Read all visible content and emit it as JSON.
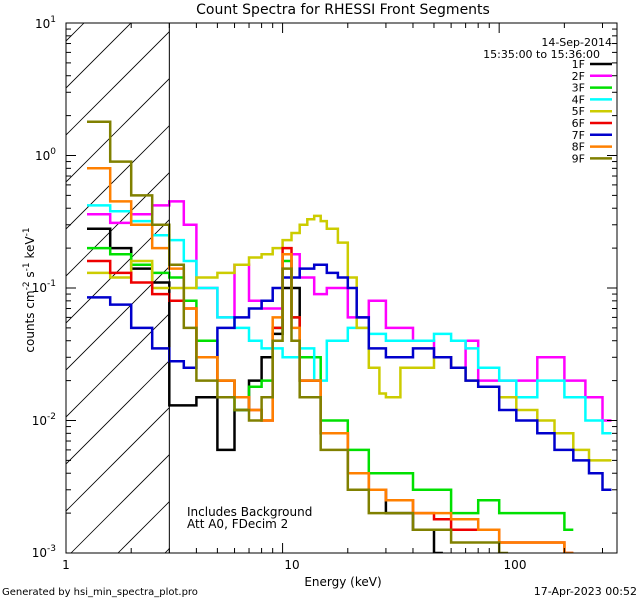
{
  "chart_data": {
    "type": "line",
    "title": "Count Spectra for RHESSI Front Segments",
    "xlabel": "Energy (keV)",
    "ylabel": "counts cm",
    "ylabel_exp1": "-2",
    "ylabel_mid": " s",
    "ylabel_exp2": "-1",
    "ylabel_tail": " keV",
    "ylabel_exp3": "-1",
    "x_scale": "log",
    "y_scale": "log",
    "xlim": [
      1,
      350
    ],
    "ylim": [
      0.001,
      10
    ],
    "x_ticks": [
      {
        "value": 10,
        "label": "10"
      },
      {
        "value": 100,
        "label": "100"
      }
    ],
    "x_tick_1_label": "1",
    "y_ticks": [
      {
        "value": 0.001,
        "base": "10",
        "exp": "-3"
      },
      {
        "value": 0.01,
        "base": "10",
        "exp": "-2"
      },
      {
        "value": 0.1,
        "base": "10",
        "exp": "-1"
      },
      {
        "value": 1,
        "base": "10",
        "exp": "0"
      },
      {
        "value": 10,
        "base": "10",
        "exp": "1"
      }
    ],
    "shaded_region": {
      "x_from": 1,
      "x_to": 3
    },
    "legend_date": "14-Sep-2014",
    "legend_time": "15:35:00 to 15:36:00",
    "annotation_line1": "Includes Background",
    "annotation_line2": "Att A0, FDecim 2",
    "series": [
      {
        "name": "1F",
        "color": "#000000",
        "values": [
          [
            1.25,
            0.28
          ],
          [
            1.6,
            0.2
          ],
          [
            2.0,
            0.14
          ],
          [
            2.5,
            0.11
          ],
          [
            3.0,
            0.013
          ],
          [
            4,
            0.015
          ],
          [
            5,
            0.006
          ],
          [
            6,
            0.012
          ],
          [
            7,
            0.02
          ],
          [
            8,
            0.03
          ],
          [
            9,
            0.045
          ],
          [
            10,
            0.1
          ],
          [
            12,
            0.02
          ],
          [
            15,
            0.008
          ],
          [
            20,
            0.004
          ],
          [
            25,
            0.003
          ],
          [
            30,
            0.002
          ],
          [
            40,
            0.0015
          ],
          [
            50,
            0.001
          ]
        ]
      },
      {
        "name": "2F",
        "color": "#ff00ff",
        "values": [
          [
            1.25,
            0.36
          ],
          [
            1.6,
            0.31
          ],
          [
            2.0,
            0.36
          ],
          [
            2.5,
            0.42
          ],
          [
            3.0,
            0.45
          ],
          [
            3.5,
            0.3
          ],
          [
            4,
            0.1
          ],
          [
            5,
            0.06
          ],
          [
            6,
            0.15
          ],
          [
            7,
            0.08
          ],
          [
            8,
            0.07
          ],
          [
            10,
            0.18
          ],
          [
            12,
            0.12
          ],
          [
            14,
            0.09
          ],
          [
            16,
            0.1
          ],
          [
            20,
            0.06
          ],
          [
            25,
            0.08
          ],
          [
            30,
            0.05
          ],
          [
            40,
            0.04
          ],
          [
            50,
            0.03
          ],
          [
            60,
            0.025
          ],
          [
            70,
            0.04
          ],
          [
            80,
            0.02
          ],
          [
            100,
            0.02
          ],
          [
            120,
            0.02
          ],
          [
            150,
            0.03
          ],
          [
            200,
            0.02
          ],
          [
            250,
            0.015
          ],
          [
            300,
            0.01
          ]
        ]
      },
      {
        "name": "3F",
        "color": "#00e000",
        "values": [
          [
            1.25,
            0.2
          ],
          [
            1.6,
            0.18
          ],
          [
            2.0,
            0.15
          ],
          [
            2.5,
            0.13
          ],
          [
            3.0,
            0.12
          ],
          [
            3.5,
            0.08
          ],
          [
            4,
            0.04
          ],
          [
            5,
            0.02
          ],
          [
            6,
            0.012
          ],
          [
            7,
            0.018
          ],
          [
            8,
            0.02
          ],
          [
            9,
            0.05
          ],
          [
            10,
            0.16
          ],
          [
            11,
            0.06
          ],
          [
            12,
            0.03
          ],
          [
            15,
            0.01
          ],
          [
            20,
            0.006
          ],
          [
            25,
            0.004
          ],
          [
            30,
            0.004
          ],
          [
            40,
            0.003
          ],
          [
            50,
            0.003
          ],
          [
            60,
            0.002
          ],
          [
            80,
            0.0025
          ],
          [
            100,
            0.002
          ],
          [
            150,
            0.002
          ],
          [
            200,
            0.0015
          ]
        ]
      },
      {
        "name": "4F",
        "color": "#00ffff",
        "values": [
          [
            1.25,
            0.42
          ],
          [
            1.6,
            0.38
          ],
          [
            2.0,
            0.32
          ],
          [
            2.5,
            0.25
          ],
          [
            3.0,
            0.23
          ],
          [
            3.5,
            0.16
          ],
          [
            4,
            0.1
          ],
          [
            5,
            0.06
          ],
          [
            6,
            0.05
          ],
          [
            7,
            0.04
          ],
          [
            8,
            0.035
          ],
          [
            10,
            0.03
          ],
          [
            12,
            0.035
          ],
          [
            14,
            0.02
          ],
          [
            16,
            0.04
          ],
          [
            20,
            0.05
          ],
          [
            25,
            0.045
          ],
          [
            30,
            0.04
          ],
          [
            40,
            0.04
          ],
          [
            50,
            0.045
          ],
          [
            60,
            0.04
          ],
          [
            70,
            0.035
          ],
          [
            80,
            0.025
          ],
          [
            100,
            0.02
          ],
          [
            120,
            0.015
          ],
          [
            150,
            0.02
          ],
          [
            200,
            0.015
          ],
          [
            250,
            0.01
          ],
          [
            300,
            0.008
          ]
        ]
      },
      {
        "name": "5F",
        "color": "#cccc00",
        "values": [
          [
            1.25,
            0.13
          ],
          [
            1.6,
            0.12
          ],
          [
            2.0,
            0.16
          ],
          [
            2.5,
            0.1
          ],
          [
            3.0,
            0.1
          ],
          [
            3.5,
            0.1
          ],
          [
            4,
            0.12
          ],
          [
            5,
            0.13
          ],
          [
            6,
            0.15
          ],
          [
            7,
            0.17
          ],
          [
            8,
            0.18
          ],
          [
            9,
            0.2
          ],
          [
            10,
            0.23
          ],
          [
            11,
            0.26
          ],
          [
            12,
            0.3
          ],
          [
            13,
            0.33
          ],
          [
            14,
            0.35
          ],
          [
            15,
            0.32
          ],
          [
            16,
            0.28
          ],
          [
            18,
            0.22
          ],
          [
            20,
            0.12
          ],
          [
            22,
            0.05
          ],
          [
            25,
            0.025
          ],
          [
            28,
            0.016
          ],
          [
            30,
            0.015
          ],
          [
            35,
            0.025
          ],
          [
            40,
            0.025
          ],
          [
            50,
            0.03
          ],
          [
            60,
            0.025
          ],
          [
            70,
            0.02
          ],
          [
            80,
            0.018
          ],
          [
            100,
            0.015
          ],
          [
            120,
            0.012
          ],
          [
            150,
            0.01
          ],
          [
            180,
            0.008
          ],
          [
            220,
            0.006
          ],
          [
            260,
            0.005
          ],
          [
            300,
            0.005
          ]
        ]
      },
      {
        "name": "6F",
        "color": "#ee0000",
        "values": [
          [
            1.25,
            0.16
          ],
          [
            1.6,
            0.13
          ],
          [
            2.0,
            0.11
          ],
          [
            2.5,
            0.09
          ],
          [
            3.0,
            0.08
          ],
          [
            3.5,
            0.07
          ],
          [
            4,
            0.03
          ],
          [
            5,
            0.02
          ],
          [
            6,
            0.015
          ],
          [
            7,
            0.012
          ],
          [
            8,
            0.01
          ],
          [
            9,
            0.05
          ],
          [
            10,
            0.2
          ],
          [
            11,
            0.06
          ],
          [
            12,
            0.02
          ],
          [
            15,
            0.008
          ],
          [
            20,
            0.004
          ],
          [
            25,
            0.003
          ],
          [
            30,
            0.0025
          ],
          [
            40,
            0.002
          ],
          [
            50,
            0.0018
          ],
          [
            60,
            0.0015
          ],
          [
            80,
            0.0015
          ],
          [
            100,
            0.0012
          ],
          [
            150,
            0.0012
          ],
          [
            200,
            0.001
          ]
        ]
      },
      {
        "name": "7F",
        "color": "#0000cc",
        "values": [
          [
            1.25,
            0.085
          ],
          [
            1.6,
            0.075
          ],
          [
            2.0,
            0.05
          ],
          [
            2.5,
            0.035
          ],
          [
            3.0,
            0.028
          ],
          [
            3.5,
            0.025
          ],
          [
            4,
            0.03
          ],
          [
            5,
            0.05
          ],
          [
            6,
            0.06
          ],
          [
            7,
            0.07
          ],
          [
            8,
            0.08
          ],
          [
            9,
            0.1
          ],
          [
            10,
            0.12
          ],
          [
            12,
            0.14
          ],
          [
            14,
            0.15
          ],
          [
            16,
            0.13
          ],
          [
            18,
            0.12
          ],
          [
            20,
            0.1
          ],
          [
            22,
            0.06
          ],
          [
            25,
            0.035
          ],
          [
            30,
            0.03
          ],
          [
            35,
            0.03
          ],
          [
            40,
            0.035
          ],
          [
            50,
            0.03
          ],
          [
            60,
            0.025
          ],
          [
            70,
            0.02
          ],
          [
            80,
            0.018
          ],
          [
            100,
            0.012
          ],
          [
            120,
            0.01
          ],
          [
            150,
            0.008
          ],
          [
            180,
            0.006
          ],
          [
            220,
            0.005
          ],
          [
            260,
            0.004
          ],
          [
            300,
            0.003
          ]
        ]
      },
      {
        "name": "8F",
        "color": "#ff8000",
        "values": [
          [
            1.25,
            0.8
          ],
          [
            1.6,
            0.45
          ],
          [
            2.0,
            0.3
          ],
          [
            2.5,
            0.2
          ],
          [
            3.0,
            0.14
          ],
          [
            3.5,
            0.07
          ],
          [
            4,
            0.03
          ],
          [
            5,
            0.02
          ],
          [
            6,
            0.015
          ],
          [
            7,
            0.012
          ],
          [
            8,
            0.01
          ],
          [
            9,
            0.06
          ],
          [
            10,
            0.18
          ],
          [
            11,
            0.05
          ],
          [
            12,
            0.02
          ],
          [
            15,
            0.008
          ],
          [
            20,
            0.004
          ],
          [
            25,
            0.003
          ],
          [
            30,
            0.0025
          ],
          [
            40,
            0.002
          ],
          [
            50,
            0.002
          ],
          [
            60,
            0.0018
          ],
          [
            80,
            0.0015
          ],
          [
            100,
            0.0012
          ],
          [
            150,
            0.0012
          ],
          [
            200,
            0.001
          ]
        ]
      },
      {
        "name": "9F",
        "color": "#808000",
        "values": [
          [
            1.25,
            1.8
          ],
          [
            1.6,
            0.9
          ],
          [
            2.0,
            0.5
          ],
          [
            2.5,
            0.3
          ],
          [
            3.0,
            0.15
          ],
          [
            3.5,
            0.05
          ],
          [
            4,
            0.02
          ],
          [
            5,
            0.015
          ],
          [
            6,
            0.012
          ],
          [
            7,
            0.01
          ],
          [
            8,
            0.015
          ],
          [
            9,
            0.04
          ],
          [
            10,
            0.14
          ],
          [
            11,
            0.04
          ],
          [
            12,
            0.015
          ],
          [
            15,
            0.006
          ],
          [
            20,
            0.003
          ],
          [
            25,
            0.002
          ],
          [
            30,
            0.002
          ],
          [
            40,
            0.0015
          ],
          [
            50,
            0.0015
          ],
          [
            60,
            0.0012
          ],
          [
            80,
            0.0012
          ],
          [
            100,
            0.001
          ]
        ]
      }
    ]
  },
  "footer": {
    "left": "Generated by hsi_min_spectra_plot.pro",
    "right": "17-Apr-2023 00:52"
  }
}
